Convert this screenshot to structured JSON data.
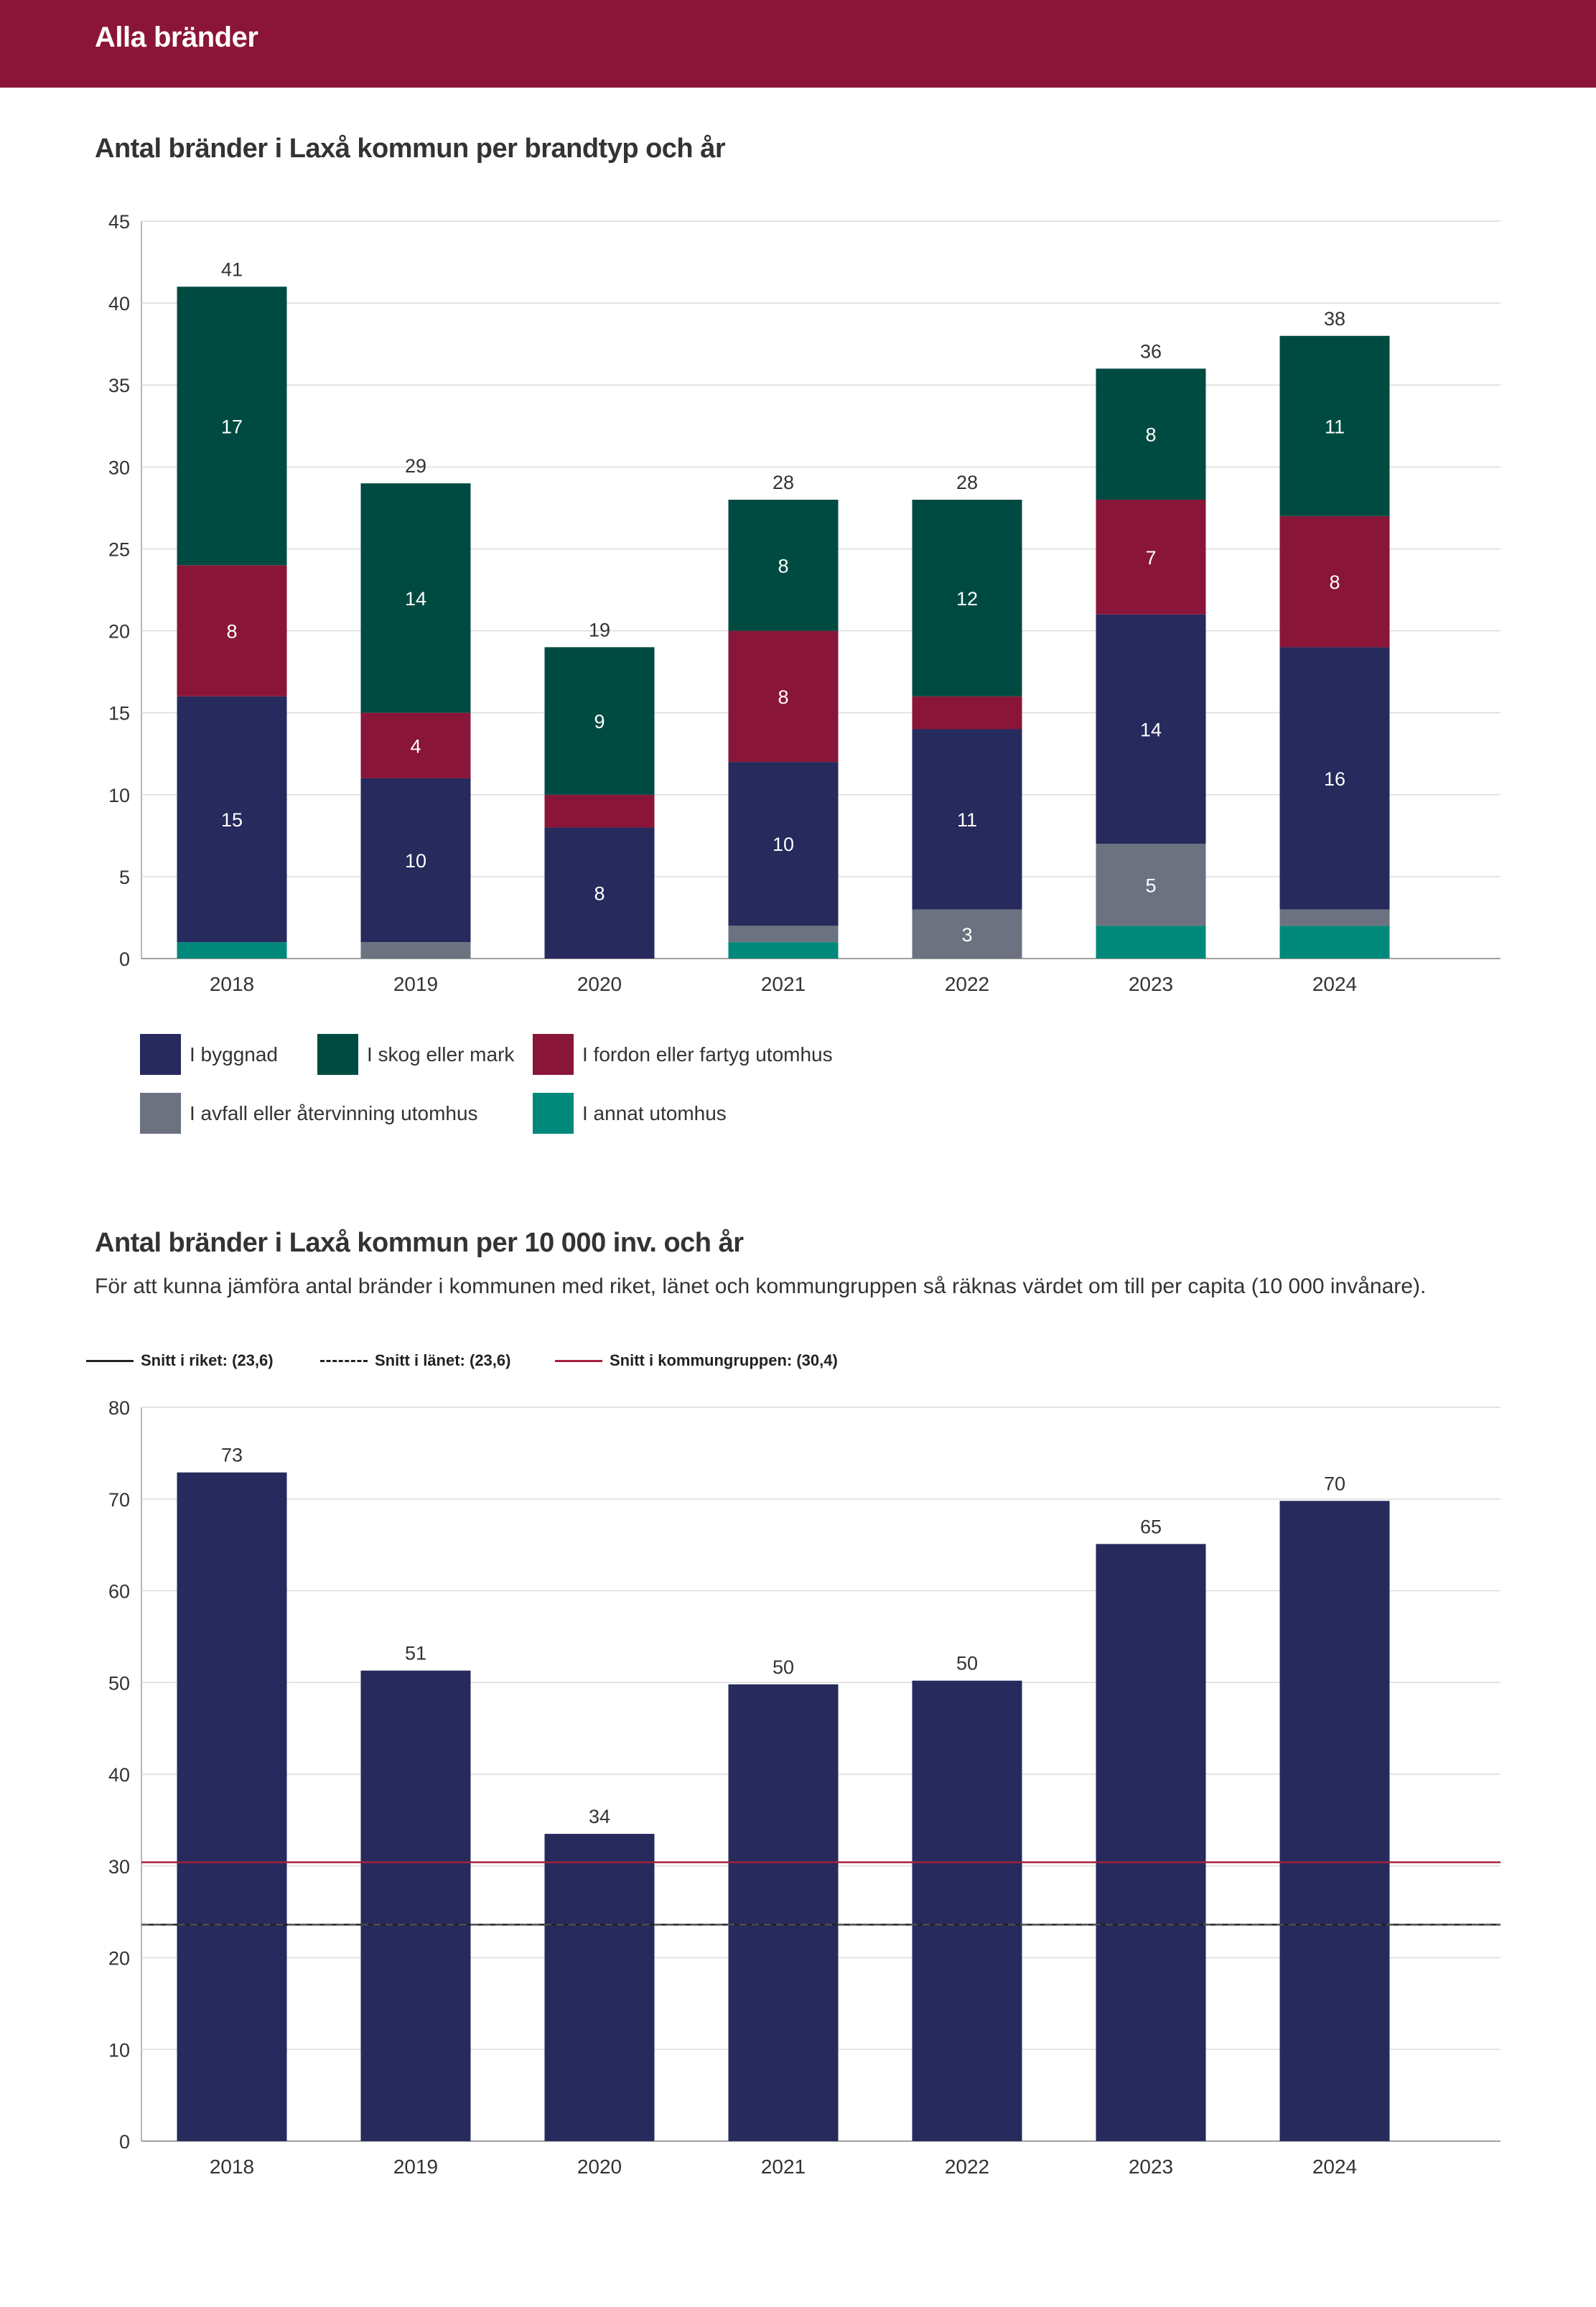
{
  "header": {
    "title": "Alla bränder"
  },
  "chart1": {
    "title": "Antal bränder i Laxå kommun per brandtyp och år",
    "legend": [
      {
        "key": "byggnad",
        "label": "I byggnad",
        "color": "#262a5c"
      },
      {
        "key": "skog",
        "label": "I skog eller mark",
        "color": "#004b41"
      },
      {
        "key": "fordon",
        "label": "I fordon eller fartyg utomhus",
        "color": "#891538"
      },
      {
        "key": "avfall",
        "label": "I avfall eller återvinning utomhus",
        "color": "#6c7280"
      },
      {
        "key": "annat",
        "label": "I annat utomhus",
        "color": "#00887a"
      }
    ]
  },
  "chart2": {
    "title": "Antal bränder i Laxå kommun per 10 000 inv. och år",
    "description": "För att kunna jämföra antal bränder i kommunen med riket, länet och kommungruppen så räknas värdet om till per capita (10 000 invånare).",
    "legend": [
      {
        "label": "Snitt i riket: (23,6)",
        "style": "solid",
        "color": "#222222"
      },
      {
        "label": "Snitt i länet: (23,6)",
        "style": "dashed",
        "color": "#222222"
      },
      {
        "label": "Snitt i kommungruppen: (30,4)",
        "style": "solid",
        "color": "#a8203c"
      }
    ]
  },
  "chart_data": [
    {
      "type": "bar",
      "stacked": true,
      "title": "Antal bränder i Laxå kommun per brandtyp och år",
      "categories": [
        "2018",
        "2019",
        "2020",
        "2021",
        "2022",
        "2023",
        "2024"
      ],
      "ylim": [
        0,
        45
      ],
      "yticks": [
        0,
        5,
        10,
        15,
        20,
        25,
        30,
        35,
        40,
        45
      ],
      "series": [
        {
          "name": "I annat utomhus",
          "color": "#00887a",
          "values": [
            1,
            0,
            0,
            1,
            0,
            2,
            2
          ]
        },
        {
          "name": "I avfall eller återvinning utomhus",
          "color": "#6c7280",
          "values": [
            0,
            1,
            0,
            1,
            3,
            5,
            1
          ]
        },
        {
          "name": "I byggnad",
          "color": "#262a5c",
          "values": [
            15,
            10,
            8,
            10,
            11,
            14,
            16
          ]
        },
        {
          "name": "I fordon eller fartyg utomhus",
          "color": "#891538",
          "values": [
            8,
            4,
            2,
            8,
            2,
            7,
            8
          ]
        },
        {
          "name": "I skog eller mark",
          "color": "#004b41",
          "values": [
            17,
            14,
            9,
            8,
            12,
            8,
            11
          ]
        }
      ],
      "totals": [
        41,
        29,
        19,
        28,
        28,
        36,
        38
      ]
    },
    {
      "type": "bar",
      "title": "Antal bränder i Laxå kommun per 10 000 inv. och år",
      "categories": [
        "2018",
        "2019",
        "2020",
        "2021",
        "2022",
        "2023",
        "2024"
      ],
      "values": [
        72.9,
        51.3,
        33.5,
        49.8,
        50.2,
        65.1,
        69.8
      ],
      "value_labels": [
        "73",
        "51",
        "34",
        "50",
        "50",
        "65",
        "70"
      ],
      "color": "#262a5c",
      "ylim": [
        0,
        80
      ],
      "yticks": [
        0,
        10,
        20,
        30,
        40,
        50,
        60,
        70,
        80
      ],
      "reference_lines": [
        {
          "name": "Snitt i riket",
          "value": 23.6,
          "style": "solid",
          "color": "#222222"
        },
        {
          "name": "Snitt i länet",
          "value": 23.6,
          "style": "dashed",
          "color": "#555555"
        },
        {
          "name": "Snitt i kommungruppen",
          "value": 30.4,
          "style": "solid",
          "color": "#a8203c"
        }
      ]
    }
  ]
}
